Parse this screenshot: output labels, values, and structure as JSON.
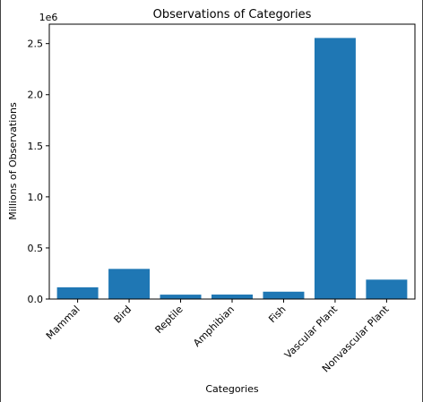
{
  "chart_data": {
    "type": "bar",
    "title": "Observations of Categories",
    "xlabel": "Categories",
    "ylabel": "Millions of Observations",
    "offset_label": "1e6",
    "categories": [
      "Mammal",
      "Bird",
      "Reptile",
      "Amphibian",
      "Fish",
      "Vascular Plant",
      "Nonvascular Plant"
    ],
    "values": [
      115000,
      295000,
      43000,
      44000,
      72000,
      2555000,
      190000
    ],
    "yticks": [
      0,
      0.5,
      1.0,
      1.5,
      2.0,
      2.5
    ],
    "ytick_labels": [
      "0.0",
      "0.5",
      "1.0",
      "1.5",
      "2.0",
      "2.5"
    ],
    "ylim": [
      0,
      2690000
    ],
    "grid": false,
    "bar_color": "#1f77b4"
  }
}
